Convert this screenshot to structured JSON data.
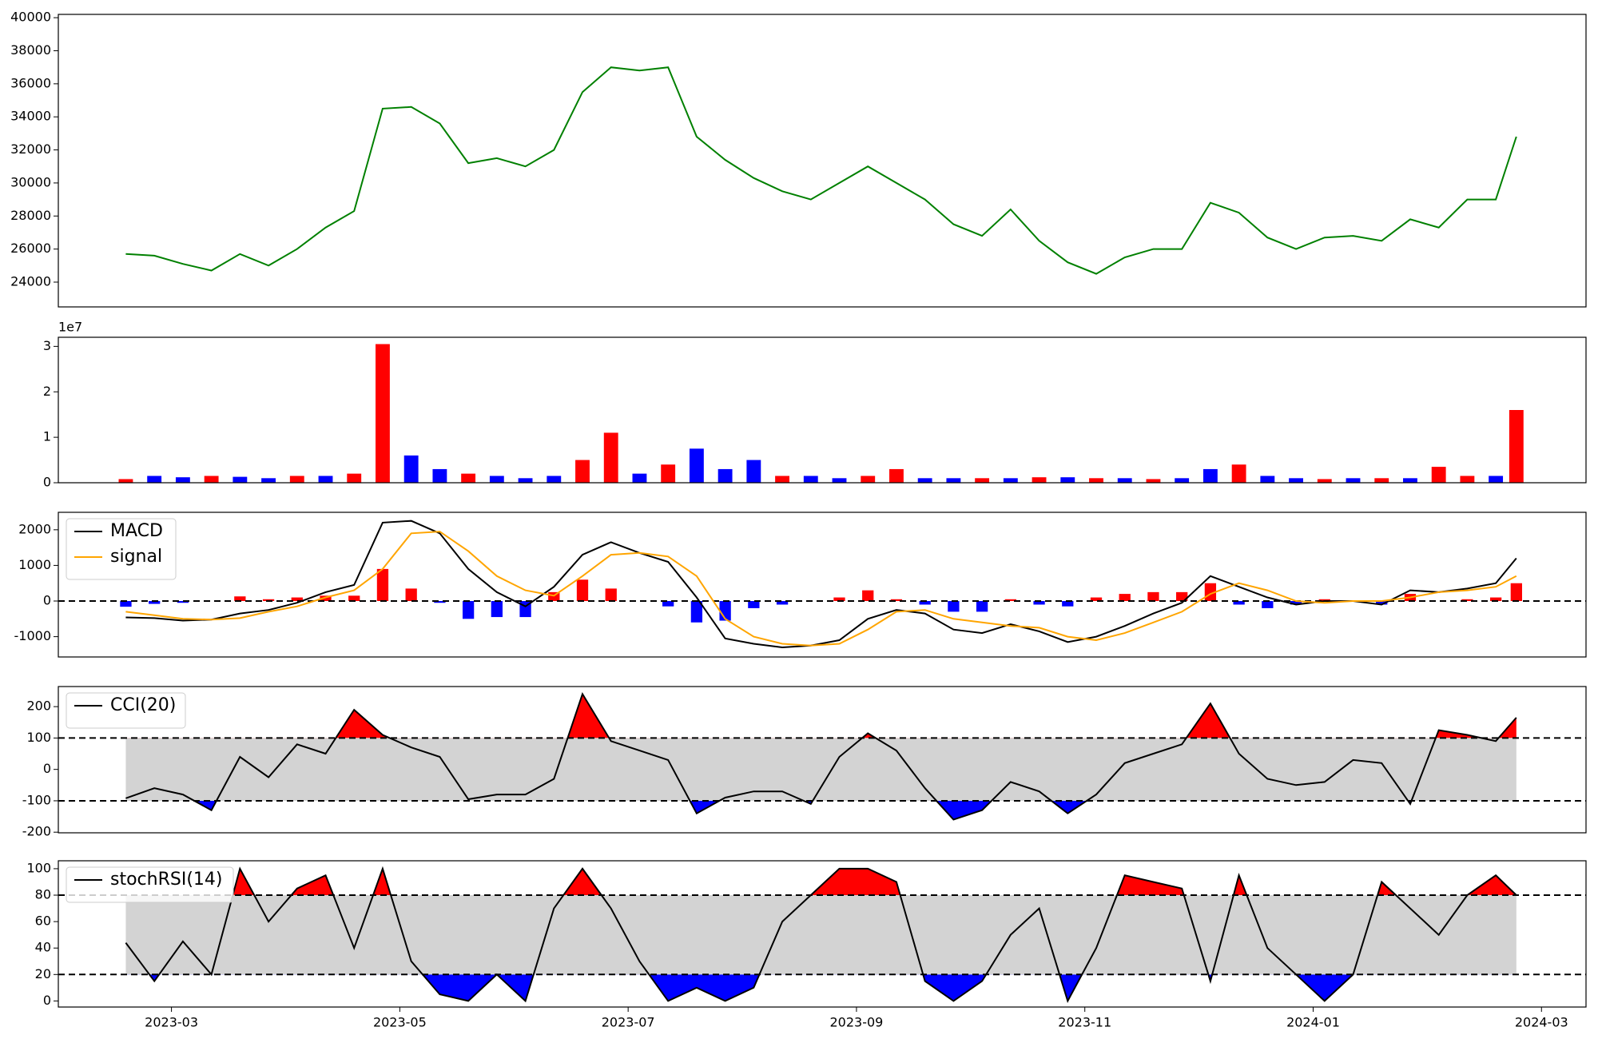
{
  "chart_data": [
    {
      "type": "line",
      "color": "green",
      "x": [
        1.6,
        1.85,
        2.1,
        2.35,
        2.6,
        2.85,
        3.1,
        3.35,
        3.6,
        3.85,
        4.1,
        4.35,
        4.6,
        4.85,
        5.1,
        5.35,
        5.6,
        5.85,
        6.1,
        6.35,
        6.6,
        6.85,
        7.1,
        7.35,
        7.6,
        7.85,
        8.1,
        8.35,
        8.6,
        8.85,
        9.1,
        9.35,
        9.6,
        9.85,
        10.1,
        10.35,
        10.6,
        10.85,
        11.1,
        11.35,
        11.6,
        11.85,
        12.1,
        12.35,
        12.6,
        12.85,
        13.1,
        13.35,
        13.6,
        13.78
      ],
      "values": [
        25700,
        25600,
        25100,
        24700,
        25700,
        25000,
        26000,
        27300,
        28300,
        34500,
        34600,
        33600,
        31200,
        31500,
        31000,
        32000,
        35500,
        37000,
        36800,
        37000,
        32800,
        31400,
        30300,
        29500,
        29000,
        30000,
        31000,
        30000,
        29000,
        27500,
        26800,
        28400,
        26500,
        25200,
        24500,
        25500,
        26000,
        26000,
        28800,
        28200,
        26700,
        26000,
        26700,
        26800,
        26500,
        27800,
        27300,
        29000,
        29000,
        32800
      ],
      "xlim": [
        1.009,
        14.39
      ],
      "ylim": [
        22500,
        40200
      ],
      "yticks": [
        24000,
        26000,
        28000,
        30000,
        32000,
        34000,
        36000,
        38000,
        40000
      ]
    },
    {
      "type": "bar",
      "offset_label": "1e7",
      "x": [
        1.6,
        1.85,
        2.1,
        2.35,
        2.6,
        2.85,
        3.1,
        3.35,
        3.6,
        3.85,
        4.1,
        4.35,
        4.6,
        4.85,
        5.1,
        5.35,
        5.6,
        5.85,
        6.1,
        6.35,
        6.6,
        6.85,
        7.1,
        7.35,
        7.6,
        7.85,
        8.1,
        8.35,
        8.6,
        8.85,
        9.1,
        9.35,
        9.6,
        9.85,
        10.1,
        10.35,
        10.6,
        10.85,
        11.1,
        11.35,
        11.6,
        11.85,
        12.1,
        12.35,
        12.6,
        12.85,
        13.1,
        13.35,
        13.6,
        13.78
      ],
      "values": [
        0.08,
        0.15,
        0.12,
        0.15,
        0.13,
        0.1,
        0.15,
        0.15,
        0.2,
        3.05,
        0.6,
        0.3,
        0.2,
        0.15,
        0.1,
        0.15,
        0.5,
        1.1,
        0.2,
        0.4,
        0.75,
        0.3,
        0.5,
        0.15,
        0.15,
        0.1,
        0.15,
        0.3,
        0.1,
        0.1,
        0.1,
        0.1,
        0.12,
        0.12,
        0.1,
        0.1,
        0.08,
        0.1,
        0.3,
        0.4,
        0.15,
        0.1,
        0.08,
        0.1,
        0.1,
        0.1,
        0.35,
        0.15,
        0.15,
        1.6
      ],
      "colors": [
        "red",
        "blue",
        "blue",
        "red",
        "blue",
        "blue",
        "red",
        "blue",
        "red",
        "red",
        "blue",
        "blue",
        "red",
        "blue",
        "blue",
        "blue",
        "red",
        "red",
        "blue",
        "red",
        "blue",
        "blue",
        "blue",
        "red",
        "blue",
        "blue",
        "red",
        "red",
        "blue",
        "blue",
        "red",
        "blue",
        "red",
        "blue",
        "red",
        "blue",
        "red",
        "blue",
        "blue",
        "red",
        "blue",
        "blue",
        "red",
        "blue",
        "red",
        "blue",
        "red",
        "red",
        "blue",
        "red"
      ],
      "xlim": [
        1.009,
        14.39
      ],
      "ylim": [
        0,
        3.2
      ],
      "yticks": [
        0,
        1,
        2,
        3
      ]
    },
    {
      "type": "macd",
      "hline": 0,
      "x": [
        1.6,
        1.85,
        2.1,
        2.35,
        2.6,
        2.85,
        3.1,
        3.35,
        3.6,
        3.85,
        4.1,
        4.35,
        4.6,
        4.85,
        5.1,
        5.35,
        5.6,
        5.85,
        6.1,
        6.35,
        6.6,
        6.85,
        7.1,
        7.35,
        7.6,
        7.85,
        8.1,
        8.35,
        8.6,
        8.85,
        9.1,
        9.35,
        9.6,
        9.85,
        10.1,
        10.35,
        10.6,
        10.85,
        11.1,
        11.35,
        11.6,
        11.85,
        12.1,
        12.35,
        12.6,
        12.85,
        13.1,
        13.35,
        13.6,
        13.78
      ],
      "series": [
        {
          "name": "MACD",
          "color": "black",
          "values": [
            -460,
            -480,
            -550,
            -520,
            -350,
            -250,
            -50,
            250,
            450,
            2200,
            2250,
            1900,
            900,
            250,
            -150,
            400,
            1300,
            1650,
            1350,
            1100,
            100,
            -1050,
            -1200,
            -1300,
            -1250,
            -1100,
            -500,
            -250,
            -350,
            -800,
            -900,
            -650,
            -850,
            -1150,
            -1000,
            -700,
            -350,
            -50,
            700,
            400,
            100,
            -100,
            0,
            0,
            -100,
            300,
            250,
            350,
            500,
            1200
          ]
        },
        {
          "name": "signal",
          "color": "orange",
          "values": [
            -300,
            -400,
            -500,
            -520,
            -480,
            -300,
            -150,
            100,
            300,
            900,
            1900,
            1950,
            1400,
            700,
            300,
            150,
            700,
            1300,
            1350,
            1250,
            700,
            -500,
            -1000,
            -1200,
            -1250,
            -1200,
            -800,
            -300,
            -250,
            -500,
            -600,
            -700,
            -750,
            -1000,
            -1100,
            -900,
            -600,
            -300,
            200,
            500,
            300,
            0,
            -50,
            0,
            0,
            100,
            250,
            300,
            400,
            700
          ]
        }
      ],
      "histogram": {
        "up_color": "red",
        "down_color": "blue",
        "values": [
          -160,
          -80,
          -50,
          0,
          130,
          50,
          100,
          150,
          150,
          900,
          350,
          -50,
          -500,
          -450,
          -450,
          250,
          600,
          350,
          0,
          -150,
          -600,
          -550,
          -200,
          -100,
          0,
          100,
          300,
          50,
          -100,
          -300,
          -300,
          50,
          -100,
          -150,
          100,
          200,
          250,
          250,
          500,
          -100,
          -200,
          -100,
          50,
          0,
          -100,
          200,
          0,
          50,
          100,
          500
        ]
      },
      "xlim": [
        1.009,
        14.39
      ],
      "ylim": [
        -1570,
        2490
      ],
      "yticks": [
        -1000,
        0,
        1000,
        2000
      ]
    },
    {
      "type": "oscillator",
      "upper": 100,
      "lower": -100,
      "band_color": "lightgray",
      "above_color": "red",
      "below_color": "blue",
      "x": [
        1.6,
        1.85,
        2.1,
        2.35,
        2.6,
        2.85,
        3.1,
        3.35,
        3.6,
        3.85,
        4.1,
        4.35,
        4.6,
        4.85,
        5.1,
        5.35,
        5.6,
        5.85,
        6.1,
        6.35,
        6.6,
        6.85,
        7.1,
        7.35,
        7.6,
        7.85,
        8.1,
        8.35,
        8.6,
        8.85,
        9.1,
        9.35,
        9.6,
        9.85,
        10.1,
        10.35,
        10.6,
        10.85,
        11.1,
        11.35,
        11.6,
        11.85,
        12.1,
        12.35,
        12.6,
        12.85,
        13.1,
        13.35,
        13.6,
        13.78
      ],
      "series": [
        {
          "name": "CCI(20)",
          "color": "black",
          "values": [
            -92,
            -60,
            -80,
            -130,
            40,
            -25,
            80,
            50,
            190,
            110,
            70,
            40,
            -95,
            -80,
            -80,
            -30,
            240,
            90,
            60,
            30,
            -140,
            -90,
            -70,
            -70,
            -110,
            40,
            115,
            60,
            -60,
            -160,
            -130,
            -40,
            -70,
            -140,
            -80,
            20,
            50,
            80,
            210,
            50,
            -30,
            -50,
            -40,
            30,
            20,
            -110,
            125,
            110,
            90,
            165
          ]
        }
      ],
      "xlim": [
        1.009,
        14.39
      ],
      "ylim": [
        -202,
        264
      ],
      "yticks": [
        -200,
        -100,
        0,
        100,
        200
      ]
    },
    {
      "type": "oscillator",
      "upper": 80,
      "lower": 20,
      "band_color": "lightgray",
      "above_color": "red",
      "below_color": "blue",
      "x": [
        1.6,
        1.85,
        2.1,
        2.35,
        2.6,
        2.85,
        3.1,
        3.35,
        3.6,
        3.85,
        4.1,
        4.35,
        4.6,
        4.85,
        5.1,
        5.35,
        5.6,
        5.85,
        6.1,
        6.35,
        6.6,
        6.85,
        7.1,
        7.35,
        7.6,
        7.85,
        8.1,
        8.35,
        8.6,
        8.85,
        9.1,
        9.35,
        9.6,
        9.85,
        10.1,
        10.35,
        10.6,
        10.85,
        11.1,
        11.35,
        11.6,
        11.85,
        12.1,
        12.35,
        12.6,
        12.85,
        13.1,
        13.35,
        13.6,
        13.78
      ],
      "series": [
        {
          "name": "stochRSI(14)",
          "color": "black",
          "values": [
            44,
            15,
            45,
            20,
            100,
            60,
            85,
            95,
            40,
            100,
            30,
            5,
            0,
            20,
            0,
            70,
            100,
            70,
            30,
            0,
            10,
            0,
            10,
            60,
            80,
            100,
            100,
            90,
            15,
            0,
            15,
            50,
            70,
            0,
            40,
            95,
            90,
            85,
            15,
            95,
            40,
            20,
            0,
            20,
            90,
            70,
            50,
            80,
            95,
            80
          ]
        }
      ],
      "xlim": [
        1.009,
        14.39
      ],
      "ylim": [
        -4.6,
        106
      ],
      "yticks": [
        0,
        20,
        40,
        60,
        80,
        100
      ],
      "xticks": [
        {
          "value": 2,
          "label": "2023-03"
        },
        {
          "value": 4,
          "label": "2023-05"
        },
        {
          "value": 6,
          "label": "2023-07"
        },
        {
          "value": 8,
          "label": "2023-09"
        },
        {
          "value": 10,
          "label": "2023-11"
        },
        {
          "value": 12,
          "label": "2024-01"
        },
        {
          "value": 14,
          "label": "2024-03"
        }
      ]
    }
  ]
}
